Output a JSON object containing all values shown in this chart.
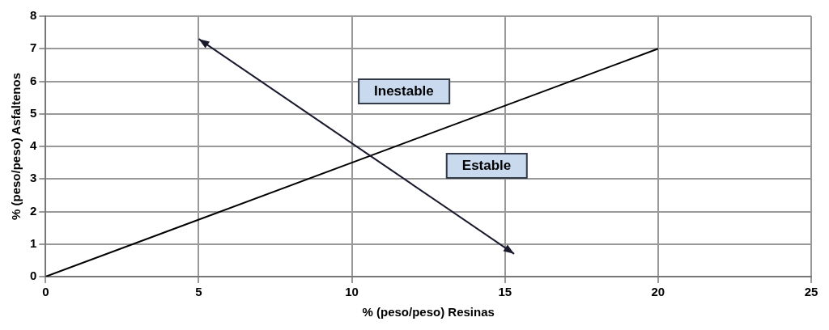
{
  "chart_data": {
    "type": "line",
    "xlabel": "% (peso/peso) Resinas",
    "ylabel": "% (peso/peso) Asfaltenos",
    "xlim": [
      0,
      25
    ],
    "xticks": [
      0,
      5,
      10,
      15,
      20,
      25
    ],
    "ylim": [
      0,
      8
    ],
    "yticks": [
      0,
      1,
      2,
      3,
      4,
      5,
      6,
      7,
      8
    ],
    "grid": true,
    "legend": false,
    "marker": "none",
    "series": [
      {
        "color": "#000000",
        "x": [
          0,
          20
        ],
        "values": [
          0,
          7
        ]
      }
    ],
    "annotations": [
      "Inestable",
      "Estable"
    ]
  }
}
